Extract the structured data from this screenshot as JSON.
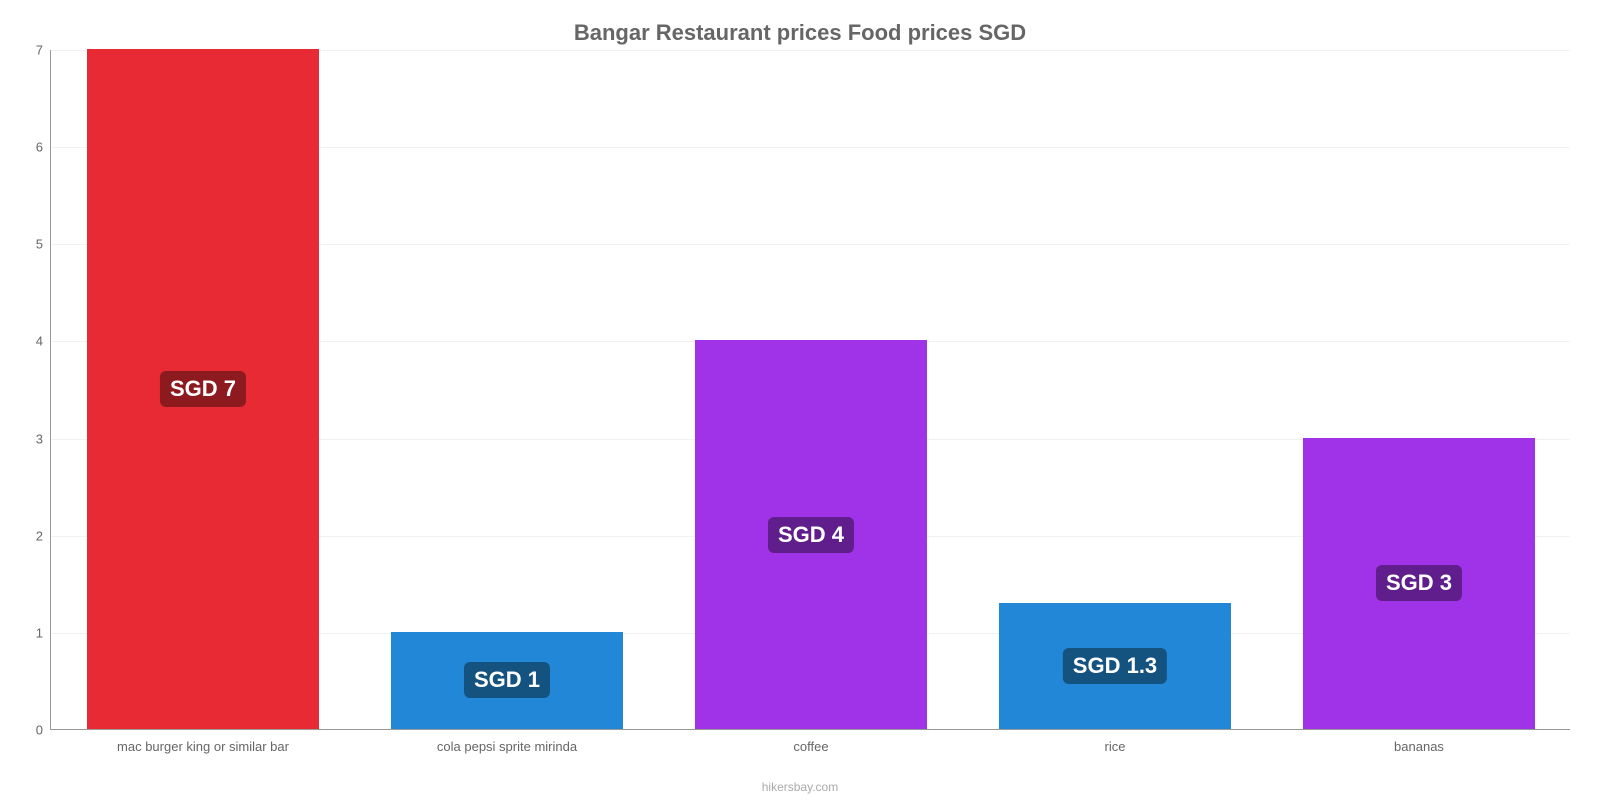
{
  "chart": {
    "type": "bar",
    "title": "Bangar Restaurant prices Food prices SGD",
    "title_fontsize": 22,
    "title_color": "#666666",
    "attribution": "hikersbay.com",
    "attribution_color": "#aaaaaa",
    "attribution_fontsize": 12,
    "background_color": "#ffffff",
    "grid_color": "#f2f2f2",
    "axis_color": "#999999",
    "ylim": [
      0,
      7
    ],
    "ytick_step": 1,
    "yticks": [
      0,
      1,
      2,
      3,
      4,
      5,
      6,
      7
    ],
    "ytick_fontsize": 13,
    "ytick_color": "#666666",
    "xtick_fontsize": 13,
    "xtick_color": "#666666",
    "bar_width": 0.76,
    "value_badge_fontsize": 22,
    "categories": [
      "mac burger king or similar bar",
      "cola pepsi sprite mirinda",
      "coffee",
      "rice",
      "bananas"
    ],
    "values": [
      7,
      1,
      4,
      1.3,
      3
    ],
    "value_labels": [
      "SGD 7",
      "SGD 1",
      "SGD 4",
      "SGD 1.3",
      "SGD 3"
    ],
    "bar_colors": [
      "#e72a33",
      "#2287d7",
      "#a033e7",
      "#2287d7",
      "#a033e7"
    ],
    "badge_colors": [
      "#8c1a1f",
      "#14527f",
      "#5f1e8c",
      "#14527f",
      "#5f1e8c"
    ]
  }
}
